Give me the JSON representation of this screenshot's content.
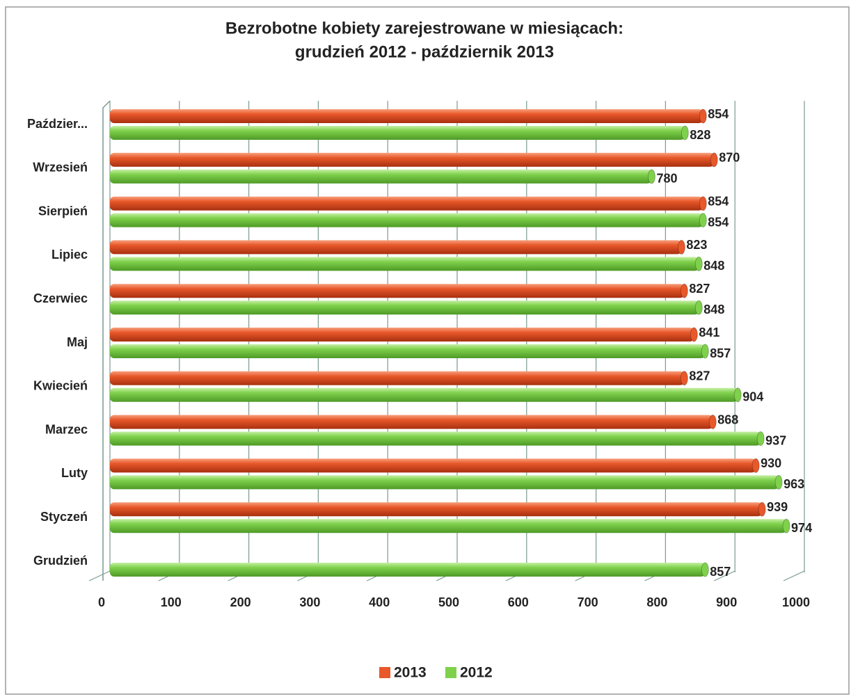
{
  "chart_data": {
    "type": "bar",
    "orientation": "horizontal",
    "title": [
      "Bezrobotne kobiety zarejestrowane w miesiącach:",
      "grudzień 2012 - październik 2013"
    ],
    "categories": [
      "Grudzień",
      "Styczeń",
      "Luty",
      "Marzec",
      "Kwiecień",
      "Maj",
      "Czerwiec",
      "Lipiec",
      "Sierpień",
      "Wrzesień",
      "Paździer..."
    ],
    "series": [
      {
        "name": "2013",
        "color": "#e8582a",
        "values": [
          null,
          939,
          930,
          868,
          827,
          841,
          827,
          823,
          854,
          870,
          854
        ]
      },
      {
        "name": "2012",
        "color": "#7fd14c",
        "values": [
          857,
          974,
          963,
          937,
          904,
          857,
          848,
          848,
          854,
          780,
          828
        ]
      }
    ],
    "xlim": [
      0,
      1000
    ],
    "xticks": [
      0,
      100,
      200,
      300,
      400,
      500,
      600,
      700,
      800,
      900,
      1000
    ],
    "grid": true,
    "legend": "bottom"
  }
}
